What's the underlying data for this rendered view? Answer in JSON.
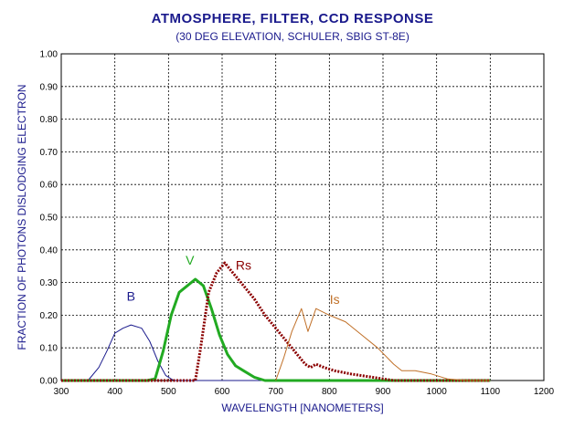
{
  "chart_data": {
    "type": "line",
    "title": "ATMOSPHERE, FILTER, CCD RESPONSE",
    "subtitle": "(30 DEG ELEVATION, SCHULER, SBIG ST-8E)",
    "xlabel": "WAVELENGTH [NANOMETERS]",
    "ylabel": "FRACTION OF PHOTONS DISLODGING ELECTRON",
    "xlim": [
      300,
      1200
    ],
    "ylim": [
      0,
      1.0
    ],
    "xticks": [
      "300",
      "400",
      "500",
      "600",
      "700",
      "800",
      "900",
      "1000",
      "1100",
      "1200"
    ],
    "yticks": [
      "0.00",
      "0.10",
      "0.20",
      "0.30",
      "0.40",
      "0.50",
      "0.60",
      "0.70",
      "0.80",
      "0.90",
      "1.00"
    ],
    "grid": true,
    "series": [
      {
        "name": "B",
        "color": "#1a1a8c",
        "style": "thin",
        "points": [
          [
            300,
            0
          ],
          [
            350,
            0
          ],
          [
            370,
            0.04
          ],
          [
            385,
            0.09
          ],
          [
            400,
            0.145
          ],
          [
            415,
            0.16
          ],
          [
            430,
            0.17
          ],
          [
            450,
            0.16
          ],
          [
            465,
            0.12
          ],
          [
            480,
            0.06
          ],
          [
            495,
            0.015
          ],
          [
            510,
            0
          ],
          [
            1100,
            0
          ]
        ]
      },
      {
        "name": "V",
        "color": "#22aa22",
        "style": "thick",
        "points": [
          [
            300,
            0
          ],
          [
            460,
            0
          ],
          [
            475,
            0.005
          ],
          [
            490,
            0.09
          ],
          [
            505,
            0.2
          ],
          [
            520,
            0.27
          ],
          [
            535,
            0.29
          ],
          [
            550,
            0.31
          ],
          [
            565,
            0.29
          ],
          [
            580,
            0.22
          ],
          [
            595,
            0.14
          ],
          [
            610,
            0.08
          ],
          [
            625,
            0.045
          ],
          [
            640,
            0.03
          ],
          [
            660,
            0.01
          ],
          [
            680,
            0
          ],
          [
            1100,
            0
          ]
        ]
      },
      {
        "name": "Rs",
        "color": "#8b0000",
        "style": "dotted",
        "points": [
          [
            300,
            0
          ],
          [
            550,
            0
          ],
          [
            560,
            0.1
          ],
          [
            575,
            0.27
          ],
          [
            590,
            0.33
          ],
          [
            605,
            0.36
          ],
          [
            620,
            0.33
          ],
          [
            640,
            0.29
          ],
          [
            660,
            0.25
          ],
          [
            680,
            0.2
          ],
          [
            700,
            0.16
          ],
          [
            720,
            0.12
          ],
          [
            740,
            0.08
          ],
          [
            755,
            0.05
          ],
          [
            765,
            0.04
          ],
          [
            775,
            0.05
          ],
          [
            790,
            0.04
          ],
          [
            810,
            0.03
          ],
          [
            840,
            0.02
          ],
          [
            880,
            0.01
          ],
          [
            920,
            0
          ],
          [
            1100,
            0
          ]
        ]
      },
      {
        "name": "Is",
        "color": "#c07028",
        "style": "thin",
        "points": [
          [
            700,
            0
          ],
          [
            715,
            0.07
          ],
          [
            730,
            0.15
          ],
          [
            748,
            0.22
          ],
          [
            760,
            0.15
          ],
          [
            775,
            0.22
          ],
          [
            800,
            0.2
          ],
          [
            830,
            0.18
          ],
          [
            860,
            0.14
          ],
          [
            890,
            0.1
          ],
          [
            920,
            0.05
          ],
          [
            935,
            0.03
          ],
          [
            960,
            0.03
          ],
          [
            990,
            0.02
          ],
          [
            1020,
            0.005
          ],
          [
            1060,
            0
          ],
          [
            1100,
            0
          ]
        ]
      }
    ]
  }
}
